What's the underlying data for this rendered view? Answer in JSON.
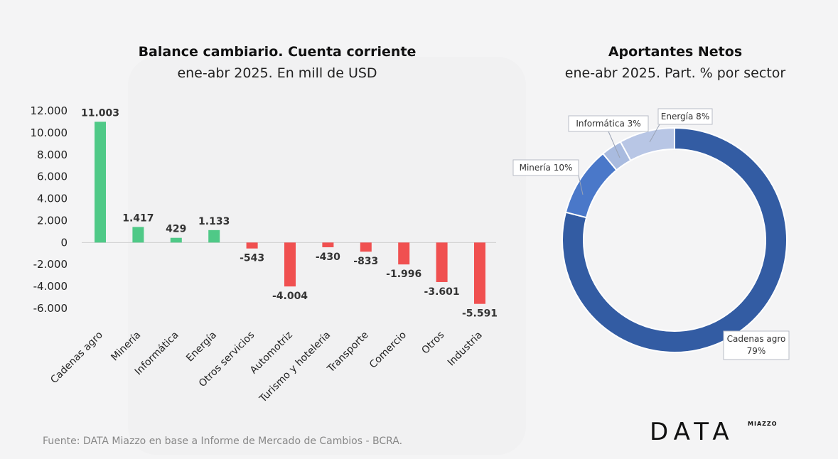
{
  "bar_chart": {
    "title": "Balance cambiario. Cuenta corriente",
    "subtitle": "ene-abr 2025. En mill de USD"
  },
  "donut_chart": {
    "title": "Aportantes Netos",
    "subtitle": "ene-abr  2025. Part. % por sector"
  },
  "source": "Fuente: DATA Miazzo en base a Informe de Mercado de Cambios - BCRA.",
  "logo": {
    "main": "DATA",
    "sub": "MIAZZO"
  },
  "colors": {
    "positive": "#4fc987",
    "negative": "#f05050",
    "donut": [
      "#335ca3",
      "#4a78c9",
      "#a9bbdf",
      "#b8c6e5"
    ]
  },
  "chart_data": [
    {
      "type": "bar",
      "title": "Balance cambiario. Cuenta corriente",
      "subtitle": "ene-abr 2025. En mill de USD",
      "categories": [
        "Cadenas agro",
        "Minería",
        "Informática",
        "Energía",
        "Otros servicios",
        "Automotriz",
        "Turismo y hotelería",
        "Transporte",
        "Comercio",
        "Otros",
        "Industria"
      ],
      "values": [
        11003,
        1417,
        429,
        1133,
        -543,
        -4004,
        -430,
        -833,
        -1996,
        -3601,
        -5591
      ],
      "value_labels": [
        "11.003",
        "1.417",
        "429",
        "1.133",
        "-543",
        "-4.004",
        "-430",
        "-833",
        "-1.996",
        "-3.601",
        "-5.591"
      ],
      "yticks": [
        "12.000",
        "10.000",
        "8.000",
        "6.000",
        "4.000",
        "2.000",
        "0",
        "-2.000",
        "-4.000",
        "-6.000"
      ],
      "ytick_values": [
        12000,
        10000,
        8000,
        6000,
        4000,
        2000,
        0,
        -2000,
        -4000,
        -6000
      ],
      "ylim": [
        -6000,
        12000
      ],
      "grid": false
    },
    {
      "type": "pie",
      "style": "donut",
      "title": "Aportantes Netos",
      "subtitle": "ene-abr  2025. Part. % por sector",
      "categories": [
        "Cadenas agro",
        "Minería",
        "Informática",
        "Energía"
      ],
      "values": [
        79,
        10,
        3,
        8
      ],
      "labels": [
        "Cadenas agro 79%",
        "Minería  10%",
        "Informática  3%",
        "Energía 8%"
      ]
    }
  ]
}
